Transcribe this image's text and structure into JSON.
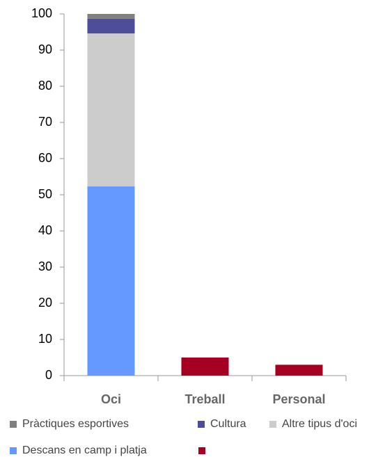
{
  "chart_data": {
    "type": "stacked_bar",
    "categories": [
      "Oci",
      "Treball",
      "Personal"
    ],
    "series": [
      {
        "name": "Descans en camp i platja",
        "color": "#6699ff",
        "values": [
          52.3,
          null,
          null
        ]
      },
      {
        "name": "Altre tipus d'oci",
        "color": "#cccccc",
        "values": [
          42.3,
          null,
          null
        ]
      },
      {
        "name": "Cultura",
        "color": "#4d4d99",
        "values": [
          4.1,
          null,
          null
        ]
      },
      {
        "name": "Pràctiques esportives",
        "color": "#808080",
        "values": [
          1.3,
          null,
          null
        ]
      },
      {
        "name": null,
        "color": "#a50021",
        "values": [
          null,
          5,
          3
        ]
      }
    ],
    "ylim": [
      0,
      100
    ],
    "yticks": [
      0,
      10,
      20,
      30,
      40,
      50,
      60,
      70,
      80,
      90,
      100
    ],
    "grid": false
  }
}
